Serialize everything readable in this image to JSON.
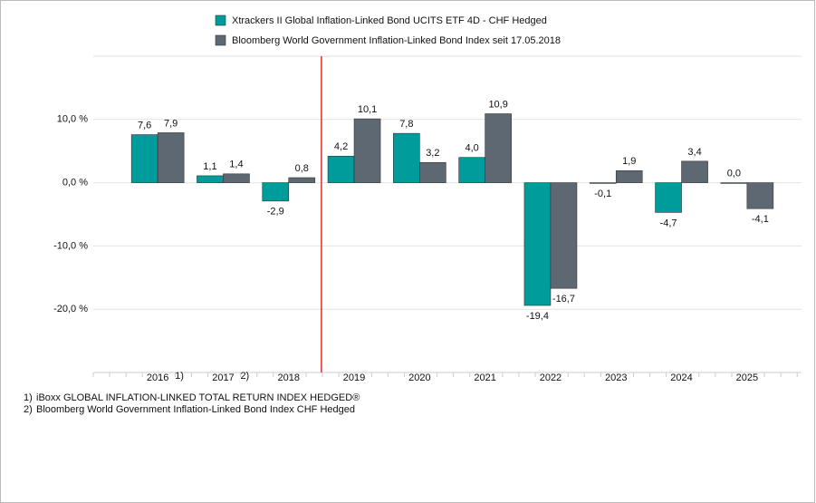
{
  "chart_data": {
    "type": "bar",
    "series": [
      {
        "name": "Xtrackers II Global Inflation-Linked Bond UCITS ETF 4D - CHF Hedged",
        "color": "#009b9b",
        "values": [
          7.6,
          1.1,
          -2.9,
          4.2,
          7.8,
          4.0,
          -19.4,
          -0.1,
          -4.7,
          0.0
        ],
        "value_labels": [
          "7,6",
          "1,1",
          "-2,9",
          "4,2",
          "7,8",
          "4,0",
          "-19,4",
          "-0,1",
          "-4,7",
          "0,0"
        ]
      },
      {
        "name": "Bloomberg World Government Inflation-Linked Bond Index seit 17.05.2018",
        "color": "#5d6873",
        "values": [
          7.9,
          1.4,
          0.8,
          10.1,
          3.2,
          10.9,
          -16.7,
          1.9,
          3.4,
          -4.1
        ],
        "value_labels": [
          "7,9",
          "1,4",
          "0,8",
          "10,1",
          "3,2",
          "10,9",
          "-16,7",
          "1,9",
          "3,4",
          "-4,1"
        ]
      }
    ],
    "categories": [
      "2016",
      "2017",
      "2018",
      "2019",
      "2020",
      "2021",
      "2022",
      "2023",
      "2024",
      "2025"
    ],
    "category_notes": [
      "1)",
      "2)",
      null,
      null,
      null,
      null,
      null,
      null,
      null,
      null
    ],
    "ylim": [
      -30,
      20
    ],
    "yticks": [
      {
        "value": 10,
        "label": "10,0 %"
      },
      {
        "value": 0,
        "label": "0,0 %"
      },
      {
        "value": -10,
        "label": "-10,0 %"
      },
      {
        "value": -20,
        "label": "-20,0 %"
      }
    ],
    "grid": true,
    "footnotes": [
      {
        "marker": "1)",
        "text": "iBoxx GLOBAL INFLATION-LINKED TOTAL RETURN INDEX HEDGED®"
      },
      {
        "marker": "2)",
        "text": "Bloomberg World Government Inflation-Linked Bond Index CHF Hedged"
      }
    ]
  }
}
